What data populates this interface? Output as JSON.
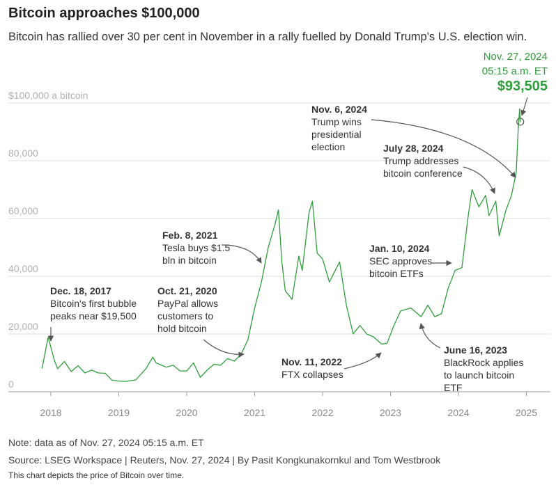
{
  "chart_data": {
    "type": "line",
    "title": "Bitcoin approaches $100,000",
    "subtitle": "Bitcoin has rallied over 30 per cent in November in a rally fuelled by Donald Trump's U.S. election win.",
    "x": [
      2017.87,
      2017.96,
      2018.05,
      2018.1,
      2018.2,
      2018.3,
      2018.4,
      2018.5,
      2018.6,
      2018.7,
      2018.8,
      2018.9,
      2019.0,
      2019.1,
      2019.25,
      2019.4,
      2019.5,
      2019.55,
      2019.7,
      2019.8,
      2019.9,
      2020.0,
      2020.1,
      2020.2,
      2020.3,
      2020.4,
      2020.5,
      2020.6,
      2020.7,
      2020.8,
      2020.9,
      2021.0,
      2021.1,
      2021.2,
      2021.3,
      2021.35,
      2021.4,
      2021.45,
      2021.55,
      2021.65,
      2021.7,
      2021.8,
      2021.85,
      2021.92,
      2022.0,
      2022.1,
      2022.25,
      2022.35,
      2022.45,
      2022.55,
      2022.65,
      2022.75,
      2022.87,
      2022.95,
      2023.05,
      2023.15,
      2023.3,
      2023.45,
      2023.55,
      2023.65,
      2023.75,
      2023.85,
      2023.95,
      2024.05,
      2024.15,
      2024.2,
      2024.3,
      2024.4,
      2024.45,
      2024.55,
      2024.6,
      2024.7,
      2024.78,
      2024.85,
      2024.88,
      2024.9,
      2024.91
    ],
    "series": [
      {
        "color": "#2e9e3a",
        "values": [
          8000,
          18900,
          11000,
          8000,
          10500,
          7000,
          9000,
          6500,
          7500,
          6500,
          6400,
          4000,
          3700,
          3600,
          4100,
          8000,
          12000,
          10000,
          8500,
          9200,
          7200,
          7200,
          10000,
          5000,
          7500,
          9500,
          9200,
          11500,
          10600,
          13000,
          18000,
          29000,
          38000,
          50000,
          58000,
          63000,
          45000,
          35000,
          32000,
          47000,
          42000,
          62000,
          66000,
          48000,
          46000,
          38000,
          45000,
          30000,
          20000,
          23000,
          20000,
          19000,
          16500,
          16800,
          23000,
          28000,
          29000,
          26000,
          30000,
          26000,
          27000,
          36000,
          42000,
          43000,
          62000,
          70000,
          64000,
          68000,
          61000,
          66000,
          54000,
          63000,
          68000,
          76000,
          91000,
          98000,
          93505
        ]
      }
    ],
    "xlim": [
      2017.7,
      2025.3
    ],
    "xticks": [
      2018,
      2019,
      2020,
      2021,
      2022,
      2023,
      2024,
      2025
    ],
    "ylim": [
      0,
      100000
    ],
    "yticks": [
      0,
      {
        "value": 20000,
        "label": "20,000"
      },
      {
        "value": 40000,
        "label": "40,000"
      },
      {
        "value": 60000,
        "label": "60,000"
      },
      {
        "value": 80000,
        "label": "80,000"
      },
      {
        "value": 100000,
        "label": "$100,000 a bitcoin"
      }
    ],
    "grid": true,
    "latest": {
      "date": "Nov. 27, 2024",
      "time": "05:15 a.m. ET",
      "value_label": "$93,505"
    },
    "annotations": [
      {
        "date": "Dec. 18, 2017",
        "lines": [
          "Bitcoin's first bubble",
          "peaks near $19,500"
        ]
      },
      {
        "date": "Oct. 21, 2020",
        "lines": [
          "PayPal allows",
          "customers to",
          "hold bitcoin"
        ]
      },
      {
        "date": "Feb. 8, 2021",
        "lines": [
          "Tesla buys $1.5",
          "bln in bitcoin"
        ]
      },
      {
        "date": "Nov. 6, 2024",
        "lines": [
          "Trump wins",
          "presidential",
          "election"
        ]
      },
      {
        "date": "July 28, 2024",
        "lines": [
          "Trump addresses",
          "bitcoin conference"
        ]
      },
      {
        "date": "Jan. 10, 2024",
        "lines": [
          "SEC approves",
          "bitcoin ETFs"
        ]
      },
      {
        "date": "Nov. 11, 2022",
        "lines": [
          "FTX collapses"
        ]
      },
      {
        "date": "June 16, 2023",
        "lines": [
          "BlackRock applies",
          "to launch bitcoin",
          "ETF"
        ]
      }
    ],
    "note": "Note: data as of Nov. 27, 2024 05:15 a.m. ET",
    "source": "Source: LSEG Workspace | Reuters, Nov. 27, 2024 | By Pasit Kongkunakornkul and Tom Westbrook",
    "description": "This chart depicts the price of Bitcoin over time."
  }
}
